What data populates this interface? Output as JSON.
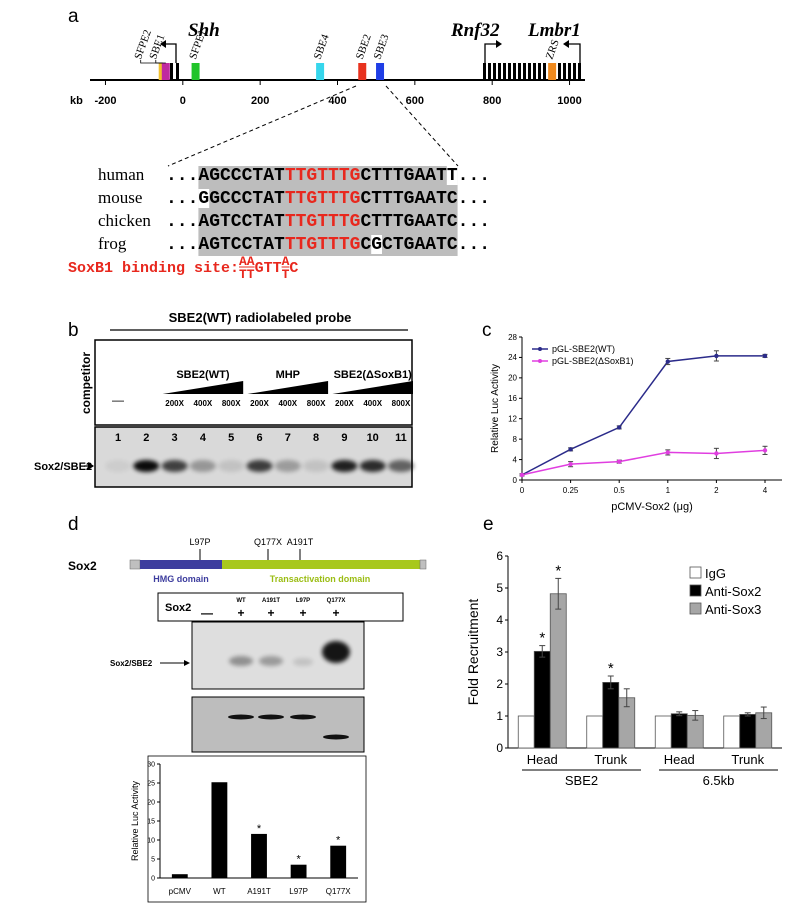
{
  "panel_labels": [
    "a",
    "b",
    "c",
    "d",
    "e"
  ],
  "genome": {
    "genes": [
      "Shh",
      "Rnf32",
      "Lmbr1"
    ],
    "axis_label": "kb",
    "xlim": [
      -240,
      1040
    ],
    "xticks": [
      -200,
      0,
      200,
      400,
      600,
      800,
      1000
    ],
    "elements": [
      {
        "label": "SFPE2",
        "position": -52,
        "color": "#f2c12e"
      },
      {
        "label": "SBE1",
        "position": -44,
        "color": "#c02aa0"
      },
      {
        "label": "SFPE1",
        "position": 33,
        "color": "#21c42a"
      },
      {
        "label": "SBE4",
        "position": 355,
        "color": "#36d6ec"
      },
      {
        "label": "SBE2",
        "position": 464,
        "color": "#e8321e"
      },
      {
        "label": "SBE3",
        "position": 510,
        "color": "#1f3ee6"
      },
      {
        "label": "ZRS",
        "position": 955,
        "color": "#f0891c"
      }
    ]
  },
  "alignment": {
    "rows": [
      {
        "species": "human",
        "start": "...",
        "left": "AGCCCTAT",
        "core": "TTGTTTG",
        "right": "CTTTGAATT",
        "end": "..."
      },
      {
        "species": "mouse",
        "start": "...",
        "left": "GGCCCTAT",
        "core": "TTGTTTG",
        "right": "CTTTGAATC",
        "end": "..."
      },
      {
        "species": "chicken",
        "start": "...",
        "left": "AGTCCTAT",
        "core": "TTGTTTG",
        "right": "CTTTGAATC",
        "end": "..."
      },
      {
        "species": "frog",
        "start": "...",
        "left": "AGTCCTAT",
        "core": "TTGTTTG",
        "right": "CGCTGAATC",
        "end": "..."
      }
    ],
    "motif": {
      "label": "SoxB1 binding site:",
      "parts": [
        [
          "AA",
          "TT"
        ],
        [
          "GTT"
        ],
        [
          "A",
          "T"
        ],
        [
          "C"
        ]
      ]
    }
  },
  "emsa": {
    "probe": "SBE2(WT) radiolabeled probe",
    "competitor_label": "competitor",
    "no_competitor": "—",
    "groups": [
      {
        "name": "SBE2(WT)",
        "doses": [
          "200X",
          "400X",
          "800X"
        ]
      },
      {
        "name": "MHP",
        "doses": [
          "200X",
          "400X",
          "800X"
        ]
      },
      {
        "name": "SBE2(ΔSoxB1)",
        "doses": [
          "200X",
          "400X",
          "800X"
        ]
      }
    ],
    "lanes": [
      "1",
      "2",
      "3",
      "4",
      "5",
      "6",
      "7",
      "8",
      "9",
      "10",
      "11"
    ],
    "band_label": "Sox2/SBE2"
  },
  "sox2": {
    "protein": "Sox2",
    "mutations": [
      "L97P",
      "Q177X",
      "A191T"
    ],
    "domains": [
      "HMG domain",
      "Transactivation domain"
    ],
    "gel_row_label": "Sox2",
    "lanes": [
      {
        "label": null,
        "sox2": "—"
      },
      {
        "label": "WT",
        "sox2": "+"
      },
      {
        "label": "A191T",
        "sox2": "+"
      },
      {
        "label": "L97P",
        "sox2": "+"
      },
      {
        "label": "Q177X",
        "sox2": "+"
      }
    ],
    "band_label": "Sox2/SBE2"
  },
  "chart_data": [
    {
      "type": "line",
      "xlabel": "pCMV-Sox2 (μg)",
      "ylabel": "Relative Luc Activity",
      "categories": [
        "0",
        "0.25",
        "0.5",
        "1",
        "2",
        "4"
      ],
      "ylim": [
        0,
        28
      ],
      "yticks": [
        0,
        4,
        8,
        12,
        16,
        20,
        24,
        28
      ],
      "legend": "upper left",
      "series": [
        {
          "name": "pGL-SBE2(WT)",
          "color": "#2b2b8a",
          "values": [
            1,
            6,
            10.3,
            23.2,
            24.3,
            24.3
          ],
          "errors": [
            0.2,
            0.3,
            0.3,
            0.6,
            1.0,
            0.3
          ]
        },
        {
          "name": "pGL-SBE2(ΔSoxB1)",
          "color": "#e03ee0",
          "values": [
            1,
            3.1,
            3.6,
            5.4,
            5.2,
            5.8
          ],
          "errors": [
            0.2,
            0.5,
            0.3,
            0.5,
            1.0,
            0.8
          ]
        }
      ]
    },
    {
      "type": "bar",
      "ylabel": "Relative Luc Activity",
      "color": "#000000",
      "categories": [
        "pCMV",
        "WT",
        "A191T",
        "L97P",
        "Q177X"
      ],
      "values": [
        1,
        25.2,
        11.6,
        3.5,
        8.5
      ],
      "annotations": [
        null,
        null,
        "*",
        "*",
        "*"
      ],
      "ylim": [
        0,
        30
      ],
      "yticks": [
        0,
        5,
        10,
        15,
        20,
        25,
        30
      ]
    },
    {
      "type": "grouped_bar",
      "ylabel": "Fold Recruitment",
      "categories": [
        "Head",
        "Trunk",
        "Head",
        "Trunk"
      ],
      "group_labels": [
        "SBE2",
        "6.5kb"
      ],
      "ylim": [
        0,
        6
      ],
      "yticks": [
        0,
        1,
        2,
        3,
        4,
        5,
        6
      ],
      "legend": "upper right",
      "series": [
        {
          "name": "IgG",
          "color": "#ffffff",
          "values": [
            1,
            1,
            1,
            1
          ]
        },
        {
          "name": "Anti-Sox2",
          "color": "#000000",
          "values": [
            3.02,
            2.05,
            1.07,
            1.05
          ],
          "errors": [
            0.18,
            0.2,
            0.06,
            0.05
          ],
          "annotations": [
            "*",
            "*",
            null,
            null
          ]
        },
        {
          "name": "Anti-Sox3",
          "color": "#a6a6a6",
          "values": [
            4.82,
            1.57,
            1.02,
            1.1
          ],
          "errors": [
            0.48,
            0.28,
            0.15,
            0.18
          ],
          "annotations": [
            "*",
            null,
            null,
            null
          ]
        }
      ]
    }
  ]
}
